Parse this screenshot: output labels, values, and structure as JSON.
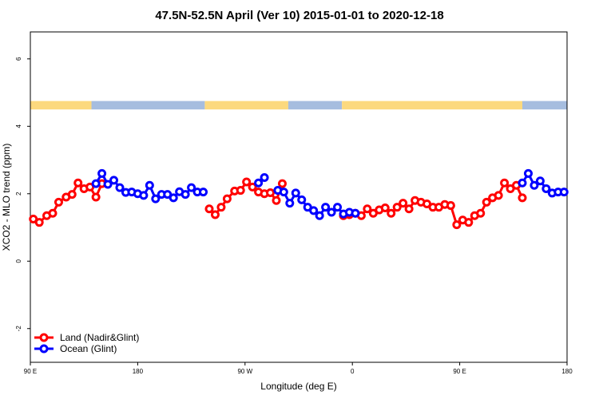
{
  "chart_data": {
    "type": "line",
    "title": "47.5N-52.5N April (Ver 10)   2015-01-01 to 2020-12-18",
    "xlabel": "Longitude (deg E)",
    "ylabel": "XCO2 - MLO trend (ppm)",
    "xlim": [
      90,
      450
    ],
    "ylim": [
      -3.0,
      6.8
    ],
    "x_ticks": [
      {
        "value": 90,
        "label": "90 E"
      },
      {
        "value": 162,
        "label": "180"
      },
      {
        "value": 234,
        "label": "90 W"
      },
      {
        "value": 306,
        "label": "0"
      },
      {
        "value": 378,
        "label": "90 E"
      },
      {
        "value": 450,
        "label": "180"
      }
    ],
    "y_ticks": [
      {
        "value": -2,
        "label": "-2"
      },
      {
        "value": 0,
        "label": "0"
      },
      {
        "value": 2,
        "label": "2"
      },
      {
        "value": 4,
        "label": "4"
      },
      {
        "value": 6,
        "label": "6"
      }
    ],
    "colors": {
      "land": "#ff0000",
      "ocean": "#0000ff",
      "band_land": "#fcd97e",
      "band_ocean": "#a6bddf"
    },
    "landmask_band": {
      "y_range": [
        4.5,
        4.75
      ],
      "segments": [
        {
          "from": 90,
          "to": 131,
          "type": "land"
        },
        {
          "from": 131,
          "to": 207,
          "type": "ocean"
        },
        {
          "from": 207,
          "to": 263,
          "type": "land"
        },
        {
          "from": 263,
          "to": 299,
          "type": "ocean"
        },
        {
          "from": 299,
          "to": 420,
          "type": "land"
        },
        {
          "from": 420,
          "to": 450,
          "type": "ocean"
        }
      ]
    },
    "series": [
      {
        "name": "Land (Nadir&Glint)",
        "color": "#ff0000",
        "segments": [
          {
            "x": [
              92,
              96,
              101,
              105,
              109,
              114,
              118,
              122,
              126,
              130,
              134,
              138
            ],
            "y": [
              1.25,
              1.15,
              1.35,
              1.42,
              1.75,
              1.9,
              1.98,
              2.32,
              2.15,
              2.2,
              1.9,
              2.3
            ]
          },
          {
            "x": [
              210,
              214,
              218,
              222,
              227,
              231,
              235,
              239,
              243,
              247,
              251,
              255,
              259
            ],
            "y": [
              1.55,
              1.38,
              1.6,
              1.85,
              2.08,
              2.1,
              2.35,
              2.2,
              2.05,
              2.0,
              2.03,
              1.8,
              2.3
            ]
          },
          {
            "x": [
              300,
              304,
              308,
              312,
              316,
              320,
              324,
              328,
              332,
              336,
              340,
              344,
              348,
              352,
              356,
              360,
              364,
              368,
              372,
              376,
              380,
              384,
              388,
              392,
              396,
              400,
              404,
              408,
              412,
              416,
              420
            ],
            "y": [
              1.35,
              1.38,
              1.42,
              1.35,
              1.55,
              1.42,
              1.52,
              1.58,
              1.42,
              1.6,
              1.72,
              1.55,
              1.8,
              1.75,
              1.7,
              1.6,
              1.6,
              1.68,
              1.65,
              1.08,
              1.22,
              1.15,
              1.35,
              1.42,
              1.75,
              1.88,
              1.95,
              2.32,
              2.15,
              2.25,
              1.88
            ]
          }
        ]
      },
      {
        "name": "Ocean (Glint)",
        "color": "#0000ff",
        "segments": [
          {
            "x": [
              134,
              138,
              142,
              146,
              150,
              154,
              158,
              162,
              166,
              170,
              174,
              178,
              182,
              186,
              190,
              194,
              198,
              202,
              206
            ],
            "y": [
              2.3,
              2.6,
              2.28,
              2.4,
              2.18,
              2.04,
              2.05,
              2.0,
              1.95,
              2.25,
              1.85,
              1.98,
              1.98,
              1.88,
              2.06,
              1.98,
              2.18,
              2.05,
              2.05
            ]
          },
          {
            "x": [
              243,
              247
            ],
            "y": [
              2.32,
              2.48
            ]
          },
          {
            "x": [
              256,
              260,
              264,
              268,
              272,
              276,
              280,
              284,
              288,
              292,
              296,
              300,
              304,
              308
            ],
            "y": [
              2.1,
              2.05,
              1.72,
              2.02,
              1.82,
              1.6,
              1.5,
              1.35,
              1.6,
              1.45,
              1.6,
              1.4,
              1.45,
              1.42
            ]
          },
          {
            "x": [
              420,
              424,
              428,
              432,
              436,
              440,
              444,
              448
            ],
            "y": [
              2.32,
              2.6,
              2.25,
              2.38,
              2.15,
              2.02,
              2.05,
              2.05
            ]
          }
        ]
      }
    ],
    "legend": {
      "placement": "bottom-left",
      "entries": [
        {
          "label": "Land (Nadir&Glint)",
          "color": "#ff0000"
        },
        {
          "label": "Ocean (Glint)",
          "color": "#0000ff"
        }
      ]
    },
    "grid": false
  }
}
